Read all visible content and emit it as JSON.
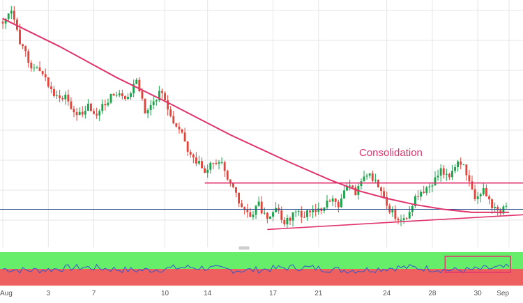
{
  "chart_data": [
    {
      "type": "candlestick",
      "x_tick_labels": [
        "Aug",
        "3",
        "7",
        "10",
        "14",
        "17",
        "21",
        "24",
        "28",
        "30",
        "Sep"
      ],
      "annotation": "Consolidation",
      "colors": {
        "up": "#1aa34a",
        "down": "#e0443a",
        "moving_average": "#e0336e",
        "trend_lines": "#e0336e",
        "horizontal_line": "#2b4f8c",
        "grid": "#e6e6e6"
      },
      "grid": true,
      "price_path": [
        [
          0,
          0.24
        ],
        [
          3,
          0.18
        ],
        [
          6,
          0.38
        ],
        [
          10,
          0.52
        ],
        [
          14,
          0.56
        ],
        [
          18,
          0.74
        ],
        [
          22,
          0.72
        ],
        [
          26,
          0.86
        ],
        [
          30,
          0.78
        ],
        [
          33,
          0.85
        ],
        [
          37,
          0.74
        ],
        [
          40,
          0.7
        ],
        [
          43,
          0.76
        ],
        [
          47,
          0.63
        ],
        [
          50,
          0.82
        ],
        [
          53,
          0.77
        ],
        [
          56,
          0.68
        ],
        [
          59,
          0.87
        ],
        [
          62,
          0.91
        ],
        [
          65,
          1.06
        ],
        [
          68,
          1.13
        ],
        [
          71,
          1.21
        ],
        [
          74,
          1.13
        ],
        [
          77,
          1.16
        ],
        [
          80,
          1.27
        ],
        [
          84,
          1.44
        ],
        [
          87,
          1.48
        ],
        [
          90,
          1.42
        ],
        [
          93,
          1.52
        ],
        [
          96,
          1.43
        ],
        [
          99,
          1.54
        ],
        [
          103,
          1.46
        ],
        [
          106,
          1.49
        ],
        [
          109,
          1.44
        ],
        [
          112,
          1.48
        ],
        [
          115,
          1.38
        ],
        [
          118,
          1.44
        ],
        [
          121,
          1.28
        ],
        [
          124,
          1.35
        ],
        [
          127,
          1.22
        ],
        [
          130,
          1.25
        ],
        [
          133,
          1.32
        ],
        [
          136,
          1.45
        ],
        [
          139,
          1.52
        ],
        [
          142,
          1.49
        ],
        [
          145,
          1.38
        ],
        [
          148,
          1.33
        ],
        [
          151,
          1.28
        ],
        [
          154,
          1.18
        ],
        [
          157,
          1.25
        ],
        [
          160,
          1.15
        ],
        [
          162,
          1.18
        ],
        [
          164,
          1.25
        ],
        [
          166,
          1.36
        ],
        [
          169,
          1.33
        ],
        [
          172,
          1.44
        ],
        [
          175,
          1.48
        ],
        [
          178,
          1.41
        ]
      ],
      "moving_average": [
        [
          0,
          0.22
        ],
        [
          20,
          0.4
        ],
        [
          40,
          0.6
        ],
        [
          60,
          0.78
        ],
        [
          80,
          0.97
        ],
        [
          100,
          1.14
        ],
        [
          115,
          1.26
        ],
        [
          125,
          1.33
        ],
        [
          135,
          1.38
        ],
        [
          145,
          1.42
        ],
        [
          155,
          1.45
        ],
        [
          165,
          1.47
        ],
        [
          178,
          1.47
        ]
      ],
      "resistance": [
        [
          71,
          1.28
        ],
        [
          178,
          1.28
        ]
      ],
      "support": [
        [
          93,
          1.58
        ],
        [
          178,
          1.53
        ]
      ],
      "horizontal_level": 1.45,
      "y_range": [
        0.1,
        1.65
      ],
      "n_bars": 178
    },
    {
      "type": "line",
      "indicator": "oscillator",
      "zones": {
        "overbought_color": "#66ee6a",
        "oversold_color": "#ee5f5f"
      },
      "oscillator_box": [
        156,
        178
      ],
      "values_seed": 7
    }
  ]
}
